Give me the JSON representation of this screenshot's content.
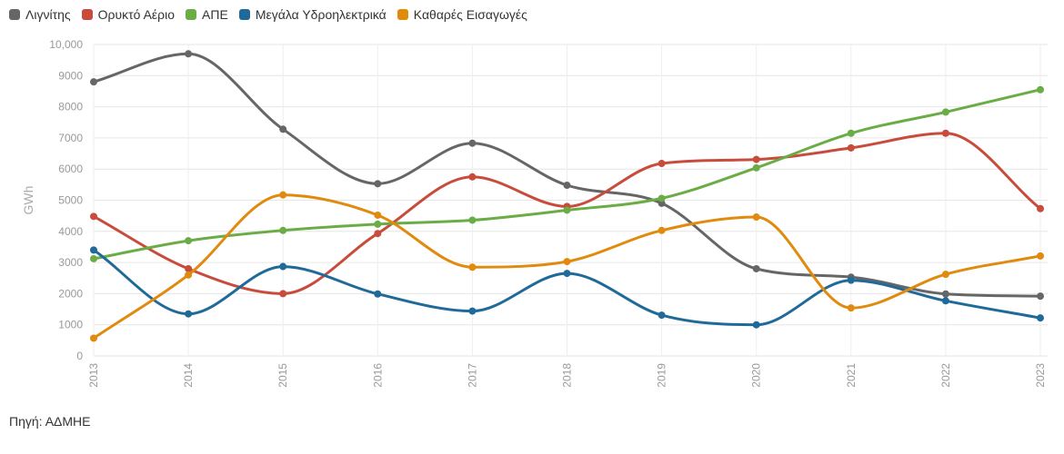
{
  "chart_data": {
    "type": "line",
    "categories": [
      "2013",
      "2014",
      "2015",
      "2016",
      "2017",
      "2018",
      "2019",
      "2020",
      "2021",
      "2022",
      "2023"
    ],
    "ylabel": "GWh",
    "ylim": [
      0,
      10000
    ],
    "yticks": [
      0,
      1000,
      2000,
      3000,
      4000,
      5000,
      6000,
      7000,
      8000,
      9000,
      10000
    ],
    "ytick_labels": [
      "0",
      "1000",
      "2000",
      "3000",
      "4000",
      "5000",
      "6000",
      "7000",
      "8000",
      "9000",
      "10,000"
    ],
    "grid": true,
    "legend_position": "top-left",
    "series": [
      {
        "name": "Λιγνίτης",
        "color": "#666666",
        "values": [
          8800,
          9700,
          7280,
          5530,
          6830,
          5480,
          4900,
          2800,
          2530,
          1990,
          1920
        ]
      },
      {
        "name": "Ορυκτό Αέριο",
        "color": "#c84c3c",
        "values": [
          4480,
          2800,
          2000,
          3930,
          5750,
          4800,
          6180,
          6310,
          6680,
          7150,
          4730
        ]
      },
      {
        "name": "ΑΠΕ",
        "color": "#6aac45",
        "values": [
          3120,
          3700,
          4030,
          4230,
          4360,
          4680,
          5060,
          6040,
          7150,
          7830,
          8550
        ]
      },
      {
        "name": "Μεγάλα Υδροηλεκτρικά",
        "color": "#1f6a99",
        "values": [
          3400,
          1350,
          2870,
          1990,
          1440,
          2650,
          1310,
          1000,
          2430,
          1770,
          1220
        ]
      },
      {
        "name": "Καθαρές Εισαγωγές",
        "color": "#e08a0e",
        "values": [
          570,
          2600,
          5170,
          4520,
          2850,
          3030,
          4030,
          4460,
          1540,
          2620,
          3210
        ]
      }
    ]
  },
  "source_text": "Πηγή: ΑΔΜΗΕ"
}
